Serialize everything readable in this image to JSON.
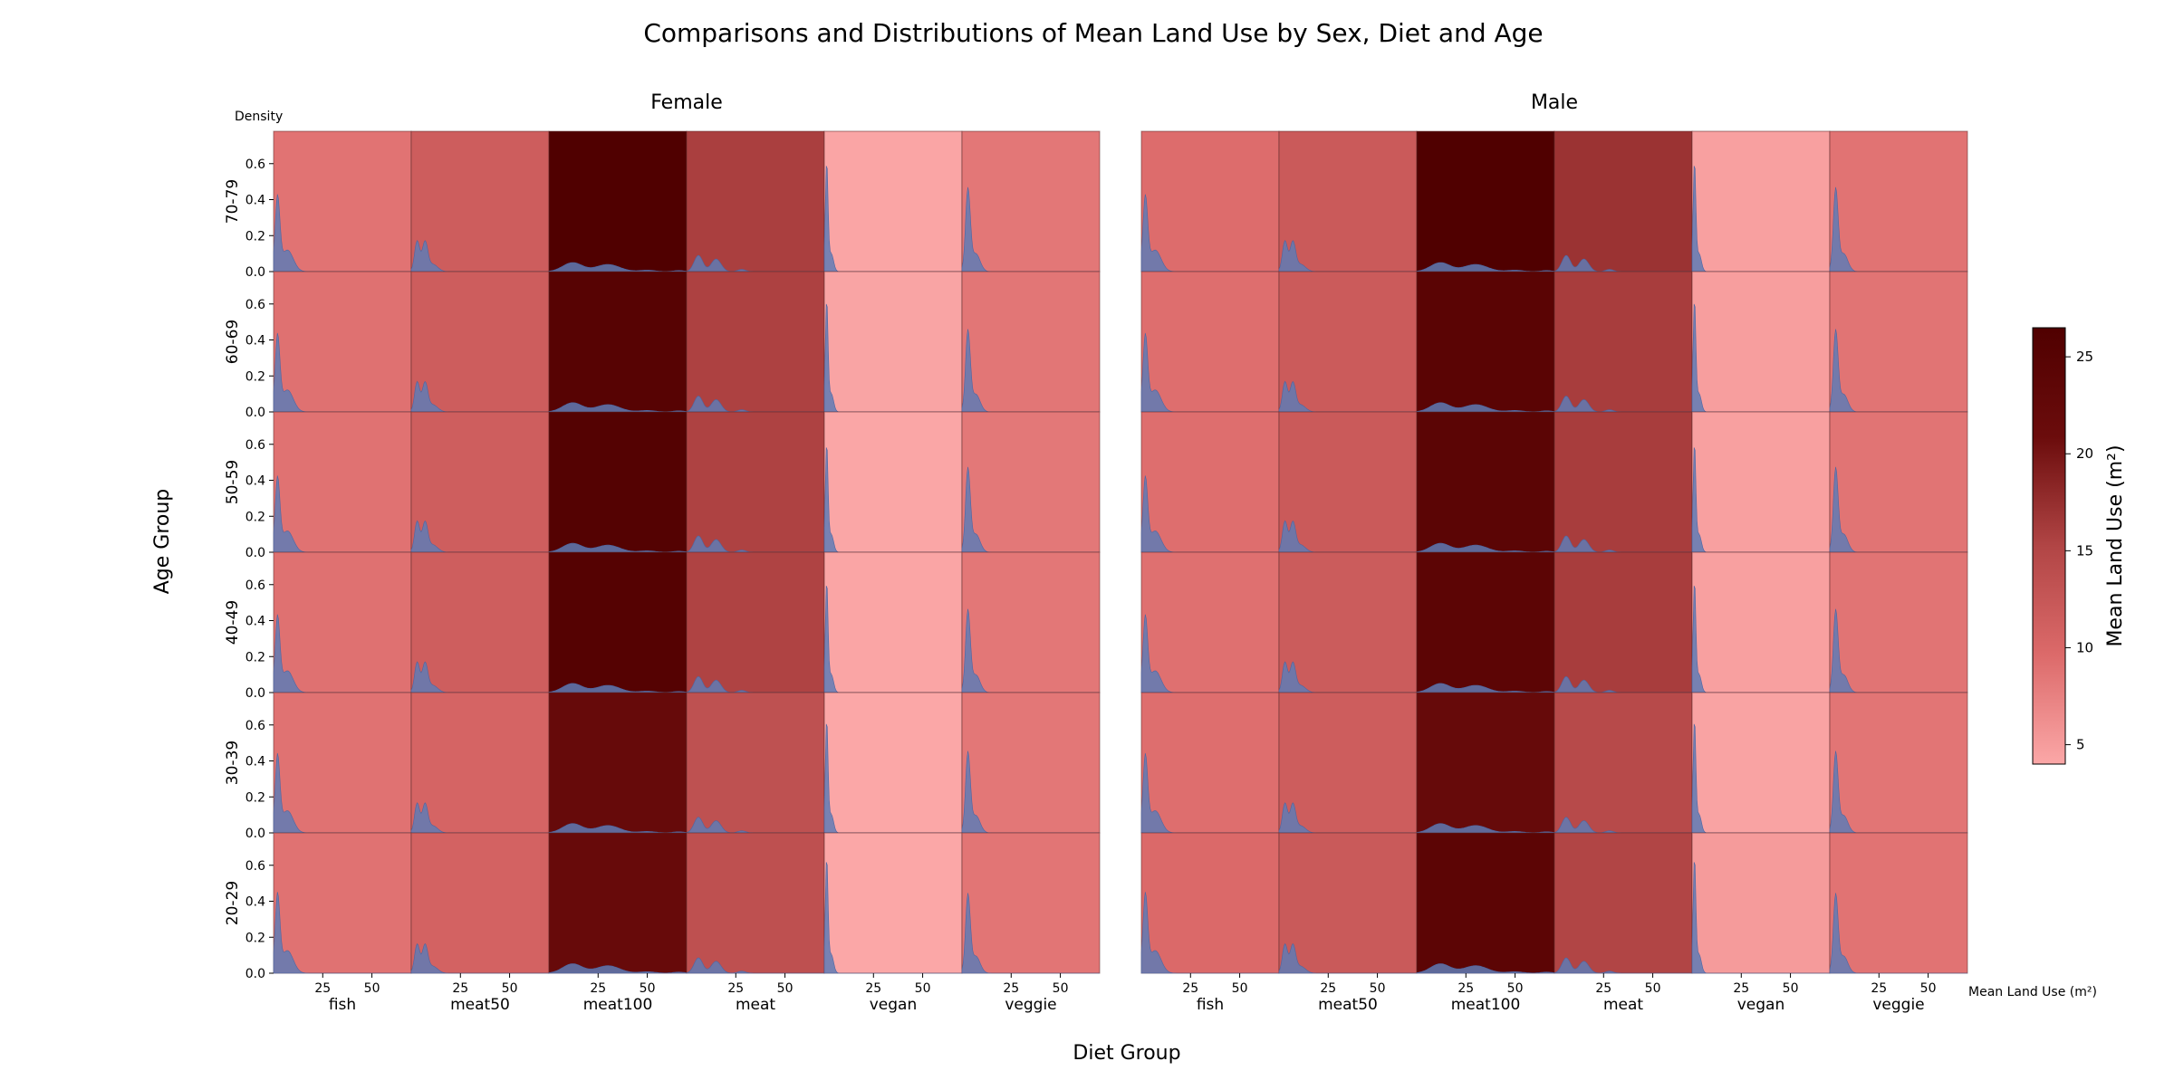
{
  "chart_data": {
    "type": "heatmap",
    "title": "Comparisons and Distributions of Mean Land Use by Sex, Diet and Age",
    "xlabel": "Diet Group",
    "ylabel": "Age Group",
    "panel_ylabel": "Density",
    "panel_xlabel": "Mean Land Use (m²)",
    "colorbar_label": "Mean Land Use (m²)",
    "colorbar_ticks": [
      5,
      10,
      15,
      20,
      25
    ],
    "colorbar_range": [
      4,
      26.5
    ],
    "colormap": [
      "#fba7a7",
      "#dc6a6a",
      "#b14545",
      "#6b0c0c",
      "#500000"
    ],
    "density_color": "#5f7bb5",
    "sexes": [
      "Female",
      "Male"
    ],
    "age_groups": [
      "70-79",
      "60-69",
      "50-59",
      "40-49",
      "30-39",
      "20-29"
    ],
    "diet_groups": [
      "fish",
      "meat50",
      "meat100",
      "meat",
      "vegan",
      "veggie"
    ],
    "density_yticks": [
      "0.0",
      "0.2",
      "0.4",
      "0.6"
    ],
    "density_ylim": [
      0,
      0.78
    ],
    "x_tick_values": [
      25,
      50
    ],
    "x_tick_labels": [
      "25",
      "50"
    ],
    "x_range": [
      0,
      70
    ],
    "mean_land_use": {
      "Female": [
        [
          8.8,
          11.6,
          26.5,
          15.8,
          4.2,
          8.4
        ],
        [
          9.0,
          11.6,
          25.0,
          15.6,
          4.3,
          8.5
        ],
        [
          8.9,
          11.4,
          25.6,
          15.5,
          4.1,
          8.3
        ],
        [
          9.0,
          11.5,
          25.5,
          15.4,
          4.2,
          8.4
        ],
        [
          8.9,
          10.6,
          22.0,
          13.5,
          3.9,
          8.4
        ],
        [
          8.9,
          10.8,
          21.8,
          13.6,
          3.5,
          8.6
        ]
      ],
      "Male": [
        [
          9.4,
          12.0,
          26.8,
          17.0,
          4.6,
          8.8
        ],
        [
          9.3,
          11.9,
          24.5,
          16.0,
          4.8,
          8.7
        ],
        [
          9.3,
          12.0,
          24.3,
          16.0,
          4.6,
          8.7
        ],
        [
          9.1,
          11.8,
          24.0,
          16.0,
          4.6,
          8.7
        ],
        [
          9.3,
          11.6,
          22.0,
          14.5,
          4.4,
          8.6
        ],
        [
          9.8,
          12.1,
          24.0,
          15.2,
          5.1,
          8.8
        ]
      ]
    },
    "density_profiles": {
      "fish": [
        [
          2,
          0.4,
          1.2
        ],
        [
          7,
          0.12,
          3.0
        ]
      ],
      "meat50": [
        [
          3,
          0.17,
          1.3
        ],
        [
          7,
          0.16,
          1.4
        ],
        [
          11,
          0.04,
          2.5
        ]
      ],
      "meat100": [
        [
          12,
          0.05,
          5.0
        ],
        [
          30,
          0.04,
          6.0
        ],
        [
          50,
          0.008,
          4.0
        ],
        [
          66,
          0.006,
          3.0
        ]
      ],
      "meat": [
        [
          6,
          0.09,
          2.2
        ],
        [
          15,
          0.07,
          2.5
        ],
        [
          28,
          0.012,
          2.0
        ]
      ],
      "vegan": [
        [
          1.2,
          0.6,
          0.7
        ],
        [
          3.5,
          0.1,
          1.2
        ]
      ],
      "veggie": [
        [
          3,
          0.45,
          1.2
        ],
        [
          7,
          0.1,
          2.2
        ]
      ]
    }
  }
}
